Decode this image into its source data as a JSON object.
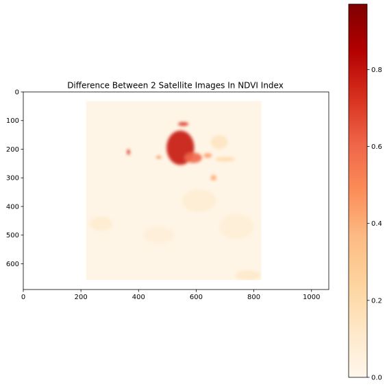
{
  "chart_data": {
    "type": "heatmap",
    "title": "Difference Between 2 Satellite Images In NDVI Index",
    "xlabel": "",
    "ylabel": "",
    "xlim": [
      0,
      1060
    ],
    "ylim": [
      690,
      0
    ],
    "x_ticks": [
      0,
      200,
      400,
      600,
      800,
      1000
    ],
    "y_ticks": [
      0,
      100,
      200,
      300,
      400,
      500,
      600
    ],
    "image_extent": {
      "x": [
        218,
        826
      ],
      "y": [
        32,
        657
      ]
    },
    "colormap": "OrRd",
    "colormap_stops": [
      "#fff7ec",
      "#fee8c8",
      "#fdd49e",
      "#fdbb84",
      "#fc8d59",
      "#ef6548",
      "#d7301f",
      "#b30000",
      "#7f0000"
    ],
    "colorbar": {
      "range": [
        0,
        0.97
      ],
      "ticks": [
        0.0,
        0.2,
        0.4,
        0.6,
        0.8
      ],
      "tick_labels": [
        "0.0",
        "0.2",
        "0.4",
        "0.6",
        "0.8"
      ]
    },
    "grid": false,
    "hotspots": [
      {
        "x": 545,
        "y": 195,
        "rx": 48,
        "ry": 60,
        "value": 0.78
      },
      {
        "x": 590,
        "y": 230,
        "rx": 30,
        "ry": 18,
        "value": 0.6
      },
      {
        "x": 555,
        "y": 112,
        "rx": 18,
        "ry": 7,
        "value": 0.7
      },
      {
        "x": 365,
        "y": 210,
        "rx": 5,
        "ry": 10,
        "value": 0.75
      },
      {
        "x": 470,
        "y": 228,
        "rx": 9,
        "ry": 5,
        "value": 0.5
      },
      {
        "x": 660,
        "y": 300,
        "rx": 10,
        "ry": 10,
        "value": 0.4
      },
      {
        "x": 640,
        "y": 222,
        "rx": 14,
        "ry": 8,
        "value": 0.45
      },
      {
        "x": 700,
        "y": 235,
        "rx": 35,
        "ry": 8,
        "value": 0.22
      },
      {
        "x": 780,
        "y": 640,
        "rx": 45,
        "ry": 18,
        "value": 0.12
      },
      {
        "x": 270,
        "y": 460,
        "rx": 40,
        "ry": 25,
        "value": 0.1
      },
      {
        "x": 610,
        "y": 380,
        "rx": 60,
        "ry": 40,
        "value": 0.09
      },
      {
        "x": 470,
        "y": 500,
        "rx": 55,
        "ry": 30,
        "value": 0.07
      },
      {
        "x": 740,
        "y": 470,
        "rx": 60,
        "ry": 45,
        "value": 0.08
      },
      {
        "x": 680,
        "y": 175,
        "rx": 30,
        "ry": 25,
        "value": 0.15
      }
    ]
  }
}
